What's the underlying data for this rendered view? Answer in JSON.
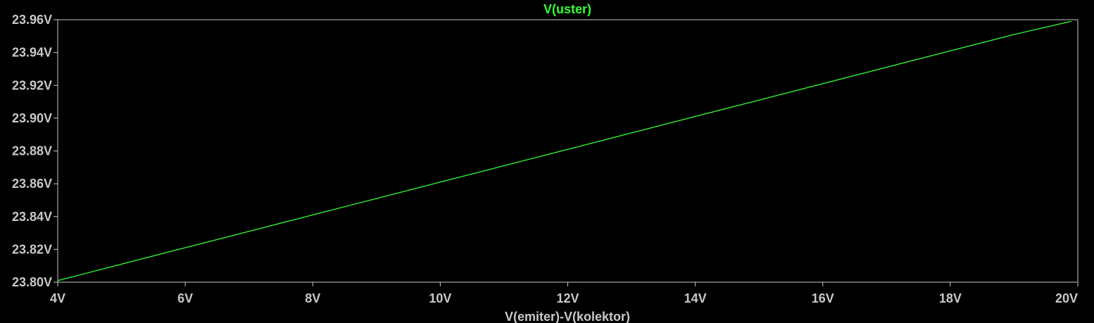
{
  "chart_data": {
    "type": "line",
    "title": "V(uster)",
    "xlabel": "V(emiter)-V(kolektor)",
    "ylabel": "",
    "xlim": [
      4,
      20
    ],
    "ylim": [
      23.8,
      23.96
    ],
    "grid": false,
    "x_ticks": [
      4,
      6,
      8,
      10,
      12,
      14,
      16,
      18,
      20
    ],
    "x_tick_labels": [
      "4V",
      "6V",
      "8V",
      "10V",
      "12V",
      "14V",
      "16V",
      "18V",
      "20V"
    ],
    "y_ticks": [
      23.8,
      23.82,
      23.84,
      23.86,
      23.88,
      23.9,
      23.92,
      23.94,
      23.96
    ],
    "y_tick_labels": [
      "23.80V",
      "23.82V",
      "23.84V",
      "23.86V",
      "23.88V",
      "23.90V",
      "23.92V",
      "23.94V",
      "23.96V"
    ],
    "series": [
      {
        "name": "V(uster)",
        "color": "#33ff33",
        "x": [
          4,
          5,
          6,
          7,
          8,
          9,
          10,
          11,
          12,
          13,
          14,
          15,
          16,
          17,
          18,
          19,
          19.9
        ],
        "y": [
          23.801,
          23.811,
          23.821,
          23.831,
          23.841,
          23.851,
          23.861,
          23.871,
          23.881,
          23.891,
          23.901,
          23.911,
          23.921,
          23.931,
          23.941,
          23.951,
          23.959
        ]
      }
    ],
    "colors": {
      "background": "#000000",
      "frame": "#c8c8c8",
      "text": "#c8c8c8"
    }
  }
}
